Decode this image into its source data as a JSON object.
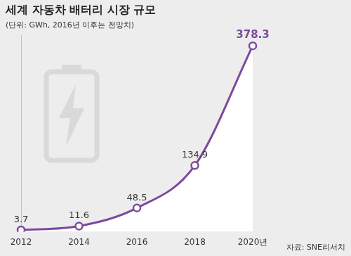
{
  "chart_data": {
    "type": "line",
    "title": "세계 자동차 배터리 시장 규모",
    "subtitle": "(단위: GWh, 2016년 이후는 전망치)",
    "source": "자료: SNE리서치",
    "categories": [
      "2012",
      "2014",
      "2016",
      "2018",
      "2020년"
    ],
    "values": [
      3.7,
      11.6,
      48.5,
      134.9,
      378.3
    ],
    "color": "#7b4a9f",
    "ylim": [
      0,
      400
    ],
    "data_labels": true,
    "tick_labels": "x",
    "grid": false,
    "marker": "circle"
  }
}
